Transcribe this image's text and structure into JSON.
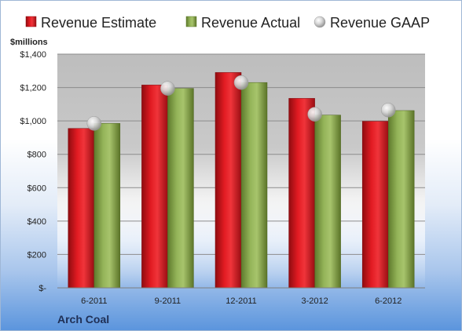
{
  "chart_data": {
    "type": "bar",
    "ylabel": "$millions",
    "ylim": [
      0,
      1400
    ],
    "yticks": [
      0,
      200,
      400,
      600,
      800,
      1000,
      1200,
      1400
    ],
    "ytick_labels": [
      "$-",
      "$200",
      "$400",
      "$600",
      "$800",
      "$1,000",
      "$1,200",
      "$1,400"
    ],
    "categories": [
      "6-2011",
      "9-2011",
      "12-2011",
      "3-2012",
      "6-2012"
    ],
    "series": [
      {
        "name": "Revenue Estimate",
        "kind": "bar",
        "color": "#d7161d",
        "values": [
          955,
          1215,
          1290,
          1135,
          998
        ]
      },
      {
        "name": "Revenue Actual",
        "kind": "bar",
        "color": "#8aaa4c",
        "values": [
          985,
          1195,
          1230,
          1035,
          1062
        ]
      },
      {
        "name": "Revenue GAAP",
        "kind": "marker",
        "color": "#c9c9c9",
        "values": [
          985,
          1195,
          1230,
          1040,
          1065
        ]
      }
    ],
    "grid": true,
    "legend_position": "top",
    "company": "Arch Coal"
  }
}
